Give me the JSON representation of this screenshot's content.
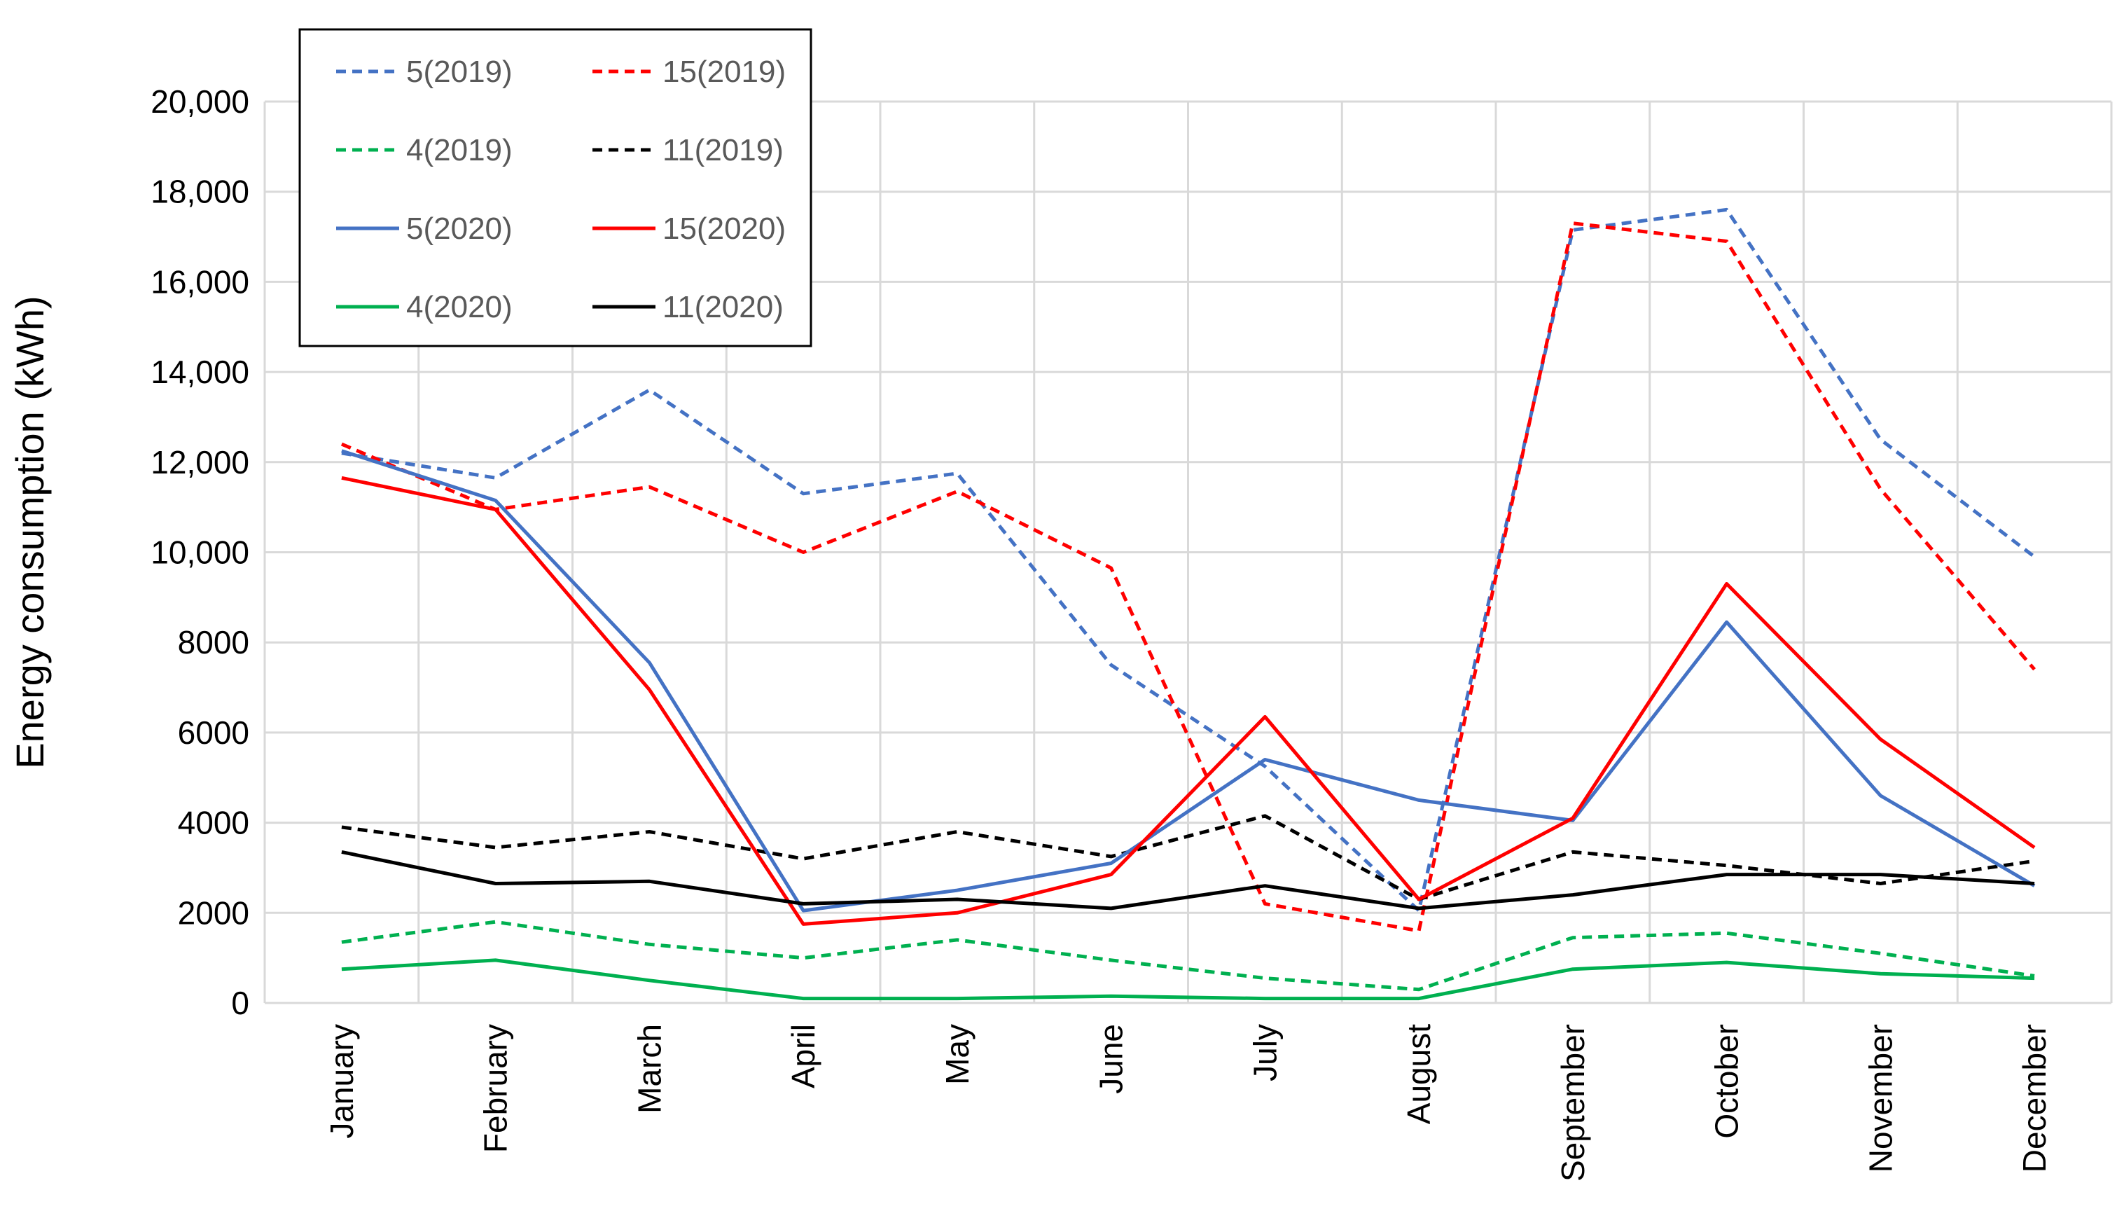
{
  "chart_data": {
    "type": "line",
    "title": "",
    "xlabel": "",
    "ylabel": "Energy consumption (kWh)",
    "ylim": [
      0,
      20000
    ],
    "yticks": [
      {
        "value": 0,
        "label": "0"
      },
      {
        "value": 2000,
        "label": "2000"
      },
      {
        "value": 4000,
        "label": "4000"
      },
      {
        "value": 6000,
        "label": "6000"
      },
      {
        "value": 8000,
        "label": "8000"
      },
      {
        "value": 10000,
        "label": "10,000"
      },
      {
        "value": 12000,
        "label": "12,000"
      },
      {
        "value": 14000,
        "label": "14,000"
      },
      {
        "value": 16000,
        "label": "16,000"
      },
      {
        "value": 18000,
        "label": "18,000"
      },
      {
        "value": 20000,
        "label": "20,000"
      }
    ],
    "categories": [
      "January",
      "February",
      "March",
      "April",
      "May",
      "June",
      "July",
      "August",
      "September",
      "October",
      "November",
      "December"
    ],
    "grid": true,
    "legend_position": "top-left",
    "series": [
      {
        "name": "5(2019)",
        "color": "#4472C4",
        "dashed": true,
        "values": [
          12200,
          11650,
          13600,
          11300,
          11750,
          7500,
          5250,
          2050,
          17150,
          17600,
          12500,
          9900
        ]
      },
      {
        "name": "15(2019)",
        "color": "#FF0000",
        "dashed": true,
        "values": [
          12400,
          10950,
          11450,
          10000,
          11350,
          9650,
          2200,
          1600,
          17300,
          16900,
          11400,
          7400
        ]
      },
      {
        "name": "4(2019)",
        "color": "#00B050",
        "dashed": true,
        "values": [
          1350,
          1800,
          1300,
          1000,
          1400,
          950,
          550,
          300,
          1450,
          1550,
          1100,
          600
        ]
      },
      {
        "name": "11(2019)",
        "color": "#000000",
        "dashed": true,
        "values": [
          3900,
          3450,
          3800,
          3200,
          3800,
          3250,
          4150,
          2300,
          3350,
          3050,
          2650,
          3150
        ]
      },
      {
        "name": "5(2020)",
        "color": "#4472C4",
        "dashed": false,
        "values": [
          12250,
          11150,
          7550,
          2050,
          2500,
          3100,
          5400,
          4500,
          4050,
          8450,
          4600,
          2600
        ]
      },
      {
        "name": "15(2020)",
        "color": "#FF0000",
        "dashed": false,
        "values": [
          11650,
          10950,
          6950,
          1750,
          2000,
          2850,
          6350,
          2300,
          4100,
          9300,
          5850,
          3450
        ]
      },
      {
        "name": "4(2020)",
        "color": "#00B050",
        "dashed": false,
        "values": [
          750,
          950,
          500,
          100,
          100,
          150,
          100,
          100,
          750,
          900,
          650,
          550
        ]
      },
      {
        "name": "11(2020)",
        "color": "#000000",
        "dashed": false,
        "values": [
          3350,
          2650,
          2700,
          2200,
          2300,
          2100,
          2600,
          2100,
          2400,
          2850,
          2850,
          2650
        ]
      }
    ]
  }
}
